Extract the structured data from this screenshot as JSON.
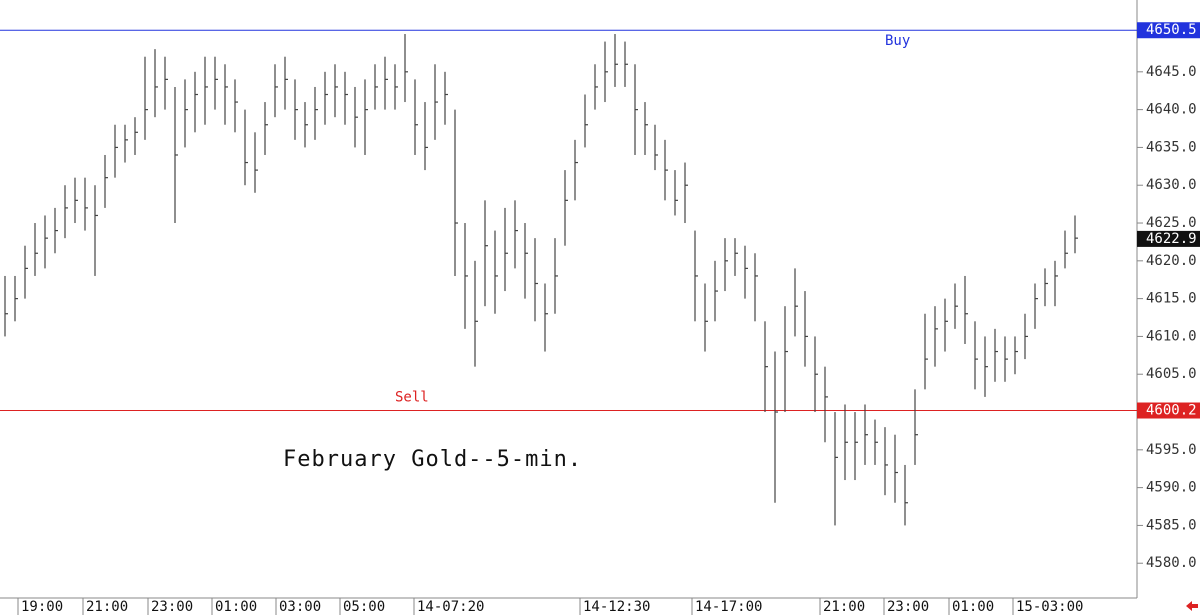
{
  "chart_data": {
    "type": "ohlc",
    "title": "February Gold--5-min.",
    "series": [
      {
        "color": "#444444",
        "high": [
          4618,
          4618,
          4622,
          4625,
          4626,
          4627,
          4630,
          4631,
          4631,
          4630,
          4634,
          4638,
          4638,
          4639,
          4647,
          4648,
          4647,
          4643,
          4644,
          4645,
          4647,
          4647,
          4646,
          4644,
          4640,
          4637,
          4641,
          4646,
          4647,
          4644,
          4641,
          4643,
          4645,
          4646,
          4645,
          4643,
          4644,
          4646,
          4647,
          4646,
          4650,
          4644,
          4641,
          4646,
          4645,
          4640,
          4625,
          4620,
          4628,
          4624,
          4627,
          4628,
          4625,
          4623,
          4617,
          4623,
          4632,
          4636,
          4642,
          4646,
          4649,
          4650,
          4649,
          4646,
          4641,
          4638,
          4636,
          4632,
          4633,
          4624,
          4617,
          4620,
          4623,
          4623,
          4622,
          4621,
          4612,
          4608,
          4614,
          4619,
          4616,
          4610,
          4606,
          4600,
          4601,
          4600,
          4601,
          4599,
          4598,
          4597,
          4593,
          4603,
          4613,
          4614,
          4615,
          4617,
          4618,
          4612,
          4610,
          4611,
          4610,
          4610,
          4613,
          4617,
          4619,
          4620,
          4624,
          4626
        ],
        "low": [
          4610,
          4612,
          4615,
          4618,
          4619,
          4621,
          4623,
          4625,
          4624,
          4618,
          4627,
          4631,
          4633,
          4634,
          4636,
          4639,
          4640,
          4625,
          4635,
          4637,
          4638,
          4640,
          4638,
          4637,
          4630,
          4629,
          4634,
          4639,
          4640,
          4636,
          4635,
          4636,
          4638,
          4639,
          4638,
          4635,
          4634,
          4640,
          4640,
          4640,
          4641,
          4634,
          4632,
          4636,
          4638,
          4618,
          4611,
          4606,
          4614,
          4613,
          4616,
          4619,
          4615,
          4612,
          4608,
          4613,
          4622,
          4628,
          4635,
          4640,
          4641,
          4643,
          4643,
          4634,
          4634,
          4632,
          4628,
          4626,
          4625,
          4612,
          4608,
          4612,
          4616,
          4618,
          4615,
          4612,
          4600,
          4588,
          4600,
          4610,
          4606,
          4600,
          4596,
          4585,
          4591,
          4591,
          4593,
          4593,
          4589,
          4588,
          4585,
          4593,
          4603,
          4606,
          4608,
          4611,
          4609,
          4603,
          4602,
          4604,
          4604,
          4605,
          4607,
          4611,
          4614,
          4614,
          4619,
          4621
        ],
        "close": [
          4613,
          4615,
          4619,
          4621,
          4623,
          4624,
          4627,
          4628,
          4627,
          4626,
          4631,
          4635,
          4636,
          4637,
          4640,
          4643,
          4644,
          4634,
          4640,
          4642,
          4643,
          4644,
          4643,
          4641,
          4633,
          4632,
          4638,
          4643,
          4644,
          4640,
          4638,
          4640,
          4642,
          4643,
          4642,
          4639,
          4640,
          4643,
          4644,
          4643,
          4645,
          4638,
          4635,
          4641,
          4642,
          4625,
          4618,
          4612,
          4622,
          4618,
          4621,
          4624,
          4621,
          4617,
          4613,
          4618,
          4628,
          4633,
          4638,
          4643,
          4645,
          4646,
          4646,
          4640,
          4638,
          4634,
          4632,
          4628,
          4630,
          4618,
          4612,
          4616,
          4620,
          4621,
          4619,
          4618,
          4606,
          4600,
          4608,
          4614,
          4610,
          4605,
          4602,
          4594,
          4596,
          4596,
          4597,
          4596,
          4593,
          4592,
          4588,
          4597,
          4607,
          4611,
          4612,
          4614,
          4613,
          4607,
          4606,
          4608,
          4607,
          4608,
          4610,
          4615,
          4617,
          4618,
          4621,
          4623
        ]
      }
    ],
    "ylim": [
      4575.4,
      4654.5
    ],
    "yticks": [
      {
        "value": 4580,
        "label": "4580.0"
      },
      {
        "value": 4585,
        "label": "4585.0"
      },
      {
        "value": 4590,
        "label": "4590.0"
      },
      {
        "value": 4595,
        "label": "4595.0"
      },
      {
        "value": 4605,
        "label": "4605.0"
      },
      {
        "value": 4610,
        "label": "4610.0"
      },
      {
        "value": 4615,
        "label": "4615.0"
      },
      {
        "value": 4620,
        "label": "4620.0"
      },
      {
        "value": 4625,
        "label": "4625.0"
      },
      {
        "value": 4630,
        "label": "4630.0"
      },
      {
        "value": 4635,
        "label": "4635.0"
      },
      {
        "value": 4640,
        "label": "4640.0"
      },
      {
        "value": 4645,
        "label": "4645.0"
      }
    ],
    "xlim": [
      0,
      113.5
    ],
    "xticks": [
      {
        "value": 1.8,
        "label": "19:00"
      },
      {
        "value": 8.3,
        "label": "21:00"
      },
      {
        "value": 14.8,
        "label": "23:00"
      },
      {
        "value": 21.2,
        "label": "01:00"
      },
      {
        "value": 27.6,
        "label": "03:00"
      },
      {
        "value": 34.0,
        "label": "05:00"
      },
      {
        "value": 41.4,
        "label": "14-07:20"
      },
      {
        "value": 58.0,
        "label": "14-12:30"
      },
      {
        "value": 69.2,
        "label": "14-17:00"
      },
      {
        "value": 82.0,
        "label": "21:00"
      },
      {
        "value": 88.4,
        "label": "23:00"
      },
      {
        "value": 94.9,
        "label": "01:00"
      },
      {
        "value": 101.3,
        "label": "15-03:00"
      }
    ],
    "levels": [
      {
        "label": "Buy",
        "value": 4650.5,
        "color": "#2233dd"
      },
      {
        "label": "Sell",
        "value": 4600.2,
        "color": "#dd2222"
      }
    ],
    "last_price": 4622.9
  }
}
